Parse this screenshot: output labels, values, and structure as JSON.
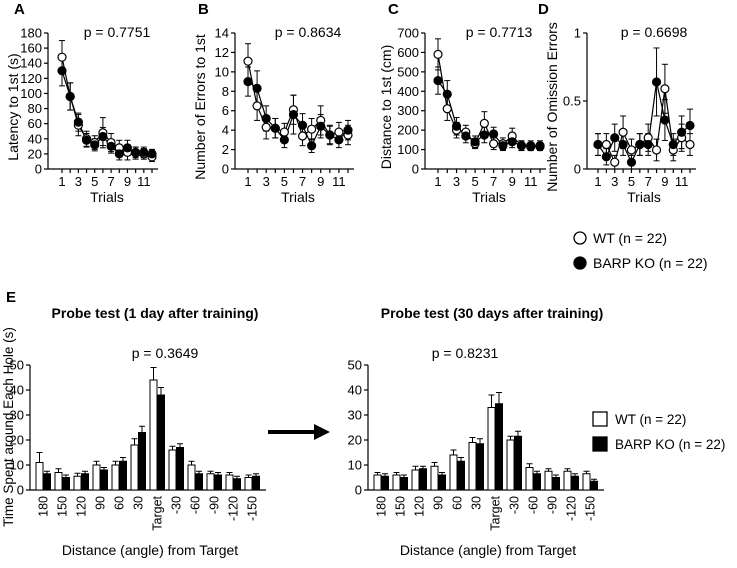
{
  "figure": {
    "trials_xlabel": "Trials",
    "trial_ticks": [
      "1",
      "3",
      "5",
      "7",
      "9",
      "11"
    ],
    "legend_top": [
      {
        "label": "WT (n = 22)",
        "marker": "open-circle"
      },
      {
        "label": "BARP KO (n = 22)",
        "marker": "filled-circle"
      }
    ],
    "legend_bottom": [
      {
        "label": "WT (n = 22)",
        "marker": "open-square"
      },
      {
        "label": "BARP KO (n = 22)",
        "marker": "filled-square"
      }
    ],
    "probe_ylabel": "Time Spent around Each Hole (s)",
    "arrow": "right-arrow"
  },
  "chart_data": [
    {
      "id": "A",
      "type": "line",
      "panel_label": "A",
      "ylabel": "Latency to 1st (s)",
      "xlabel": "Trials",
      "annotation": "p = 0.7751",
      "ylim": [
        0,
        180
      ],
      "yticks": [
        "0",
        "20",
        "40",
        "60",
        "80",
        "100",
        "120",
        "140",
        "160",
        "180"
      ],
      "x": [
        1,
        2,
        3,
        4,
        5,
        6,
        7,
        8,
        9,
        10,
        11,
        12
      ],
      "series": [
        {
          "name": "WT (n = 22)",
          "marker": "open",
          "values": [
            148,
            96,
            58,
            40,
            35,
            48,
            35,
            28,
            22,
            21,
            20,
            16
          ],
          "err": [
            22,
            18,
            14,
            10,
            9,
            20,
            12,
            10,
            10,
            8,
            7,
            6
          ]
        },
        {
          "name": "BARP KO (n = 22)",
          "marker": "filled",
          "values": [
            130,
            96,
            62,
            38,
            32,
            43,
            30,
            20,
            28,
            22,
            22,
            20
          ],
          "err": [
            20,
            18,
            12,
            9,
            8,
            12,
            9,
            8,
            10,
            7,
            7,
            6
          ]
        }
      ]
    },
    {
      "id": "B",
      "type": "line",
      "panel_label": "B",
      "ylabel": "Number of Errors to 1st",
      "xlabel": "Trials",
      "annotation": "p = 0.8634",
      "ylim": [
        0,
        14
      ],
      "yticks": [
        "0",
        "2",
        "4",
        "6",
        "8",
        "10",
        "12",
        "14"
      ],
      "x": [
        1,
        2,
        3,
        4,
        5,
        6,
        7,
        8,
        9,
        10,
        11,
        12
      ],
      "series": [
        {
          "name": "WT (n = 22)",
          "marker": "open",
          "values": [
            11.1,
            6.5,
            4.3,
            4.2,
            3.8,
            6.1,
            3.4,
            4.1,
            5.0,
            3.5,
            3.8,
            3.5
          ],
          "err": [
            1.8,
            1.5,
            1.2,
            1.0,
            0.9,
            1.5,
            1.0,
            1.1,
            1.5,
            1.0,
            1.0,
            1.0
          ]
        },
        {
          "name": "BARP KO (n = 22)",
          "marker": "filled",
          "values": [
            9.0,
            8.3,
            5.2,
            4.2,
            3.0,
            5.6,
            4.5,
            2.4,
            4.4,
            3.5,
            3.0,
            4.0
          ],
          "err": [
            1.5,
            1.8,
            1.3,
            1.0,
            0.8,
            2.0,
            1.2,
            0.7,
            1.2,
            0.9,
            0.8,
            1.0
          ]
        }
      ]
    },
    {
      "id": "C",
      "type": "line",
      "panel_label": "C",
      "ylabel": "Distance to 1st (cm)",
      "xlabel": "Trials",
      "annotation": "p = 0.7713",
      "ylim": [
        0,
        700
      ],
      "yticks": [
        "0",
        "100",
        "200",
        "300",
        "400",
        "500",
        "600",
        "700"
      ],
      "x": [
        1,
        2,
        3,
        4,
        5,
        6,
        7,
        8,
        9,
        10,
        11,
        12
      ],
      "series": [
        {
          "name": "WT (n = 22)",
          "marker": "open",
          "values": [
            590,
            310,
            200,
            190,
            130,
            235,
            130,
            130,
            170,
            120,
            115,
            115
          ],
          "err": [
            80,
            60,
            40,
            35,
            25,
            60,
            30,
            30,
            40,
            25,
            20,
            20
          ]
        },
        {
          "name": "BARP KO (n = 22)",
          "marker": "filled",
          "values": [
            455,
            385,
            220,
            170,
            140,
            175,
            180,
            120,
            140,
            120,
            120,
            120
          ],
          "err": [
            70,
            70,
            45,
            35,
            30,
            40,
            35,
            25,
            30,
            25,
            25,
            25
          ]
        }
      ]
    },
    {
      "id": "D",
      "type": "line",
      "panel_label": "D",
      "ylabel": "Number of Omission Errors",
      "xlabel": "Trials",
      "annotation": "p = 0.6698",
      "ylim": [
        0,
        1.0
      ],
      "yticks": [
        "0",
        "0.5",
        "1"
      ],
      "x": [
        1,
        2,
        3,
        4,
        5,
        6,
        7,
        8,
        9,
        10,
        11,
        12
      ],
      "series": [
        {
          "name": "WT (n = 22)",
          "marker": "open",
          "values": [
            0.18,
            0.18,
            0.05,
            0.27,
            0.14,
            0.18,
            0.23,
            0.14,
            0.59,
            0.14,
            0.23,
            0.18
          ],
          "err": [
            0.08,
            0.08,
            0.05,
            0.12,
            0.08,
            0.08,
            0.1,
            0.08,
            0.18,
            0.08,
            0.1,
            0.08
          ]
        },
        {
          "name": "BARP KO (n = 22)",
          "marker": "filled",
          "values": [
            0.18,
            0.09,
            0.23,
            0.18,
            0.05,
            0.18,
            0.18,
            0.64,
            0.36,
            0.18,
            0.27,
            0.32
          ],
          "err": [
            0.08,
            0.06,
            0.1,
            0.08,
            0.05,
            0.08,
            0.08,
            0.25,
            0.15,
            0.08,
            0.12,
            0.12
          ]
        }
      ]
    },
    {
      "id": "E1",
      "type": "bar",
      "panel_label": "E",
      "title": "Probe test (1 day after training)",
      "annotation": "p = 0.3649",
      "ylabel": "Time Spent around Each Hole (s)",
      "xlabel": "Distance (angle) from Target",
      "ylim": [
        0,
        50
      ],
      "yticks": [
        "0",
        "10",
        "20",
        "30",
        "40",
        "50"
      ],
      "categories": [
        "180",
        "150",
        "120",
        "90",
        "60",
        "30",
        "Target",
        "-30",
        "-60",
        "-90",
        "-120",
        "-150"
      ],
      "series": [
        {
          "name": "WT (n = 22)",
          "fill": "open",
          "values": [
            11,
            7,
            5.5,
            10,
            10,
            18,
            44,
            16,
            10,
            6.5,
            6,
            5
          ],
          "err": [
            4,
            1.5,
            1.2,
            1.5,
            1.5,
            2.5,
            5,
            1.5,
            1.5,
            1,
            1,
            1
          ]
        },
        {
          "name": "BARP KO (n = 22)",
          "fill": "filled",
          "values": [
            6.5,
            5,
            6.5,
            8,
            11.5,
            23,
            38,
            17,
            6.5,
            6,
            4.5,
            5.5
          ],
          "err": [
            1,
            1,
            1,
            1,
            1.5,
            2.5,
            3,
            1.5,
            1,
            1,
            1,
            1
          ]
        }
      ]
    },
    {
      "id": "E2",
      "type": "bar",
      "panel_label": "",
      "title": "Probe test (30 days after training)",
      "annotation": "p = 0.8231",
      "ylabel": "",
      "xlabel": "Distance (angle) from Target",
      "ylim": [
        0,
        50
      ],
      "yticks": [
        "0",
        "10",
        "20",
        "30",
        "40",
        "50"
      ],
      "categories": [
        "180",
        "150",
        "120",
        "90",
        "60",
        "30",
        "Target",
        "-30",
        "-60",
        "-90",
        "-120",
        "-150"
      ],
      "series": [
        {
          "name": "WT (n = 22)",
          "fill": "open",
          "values": [
            6,
            6,
            8,
            9.5,
            14,
            19,
            33,
            20,
            9,
            7.5,
            7.5,
            6.5
          ],
          "err": [
            1,
            1,
            1.5,
            1.5,
            2,
            2,
            5,
            1.5,
            1.5,
            1,
            1,
            1
          ]
        },
        {
          "name": "BARP KO (n = 22)",
          "fill": "filled",
          "values": [
            5.5,
            5,
            8.5,
            6,
            11.5,
            18.5,
            34.5,
            21.5,
            6.5,
            5,
            5.5,
            3.5
          ],
          "err": [
            1,
            1,
            1,
            1,
            1.5,
            2,
            4.5,
            2,
            1,
            1,
            1,
            0.8
          ]
        }
      ]
    }
  ]
}
